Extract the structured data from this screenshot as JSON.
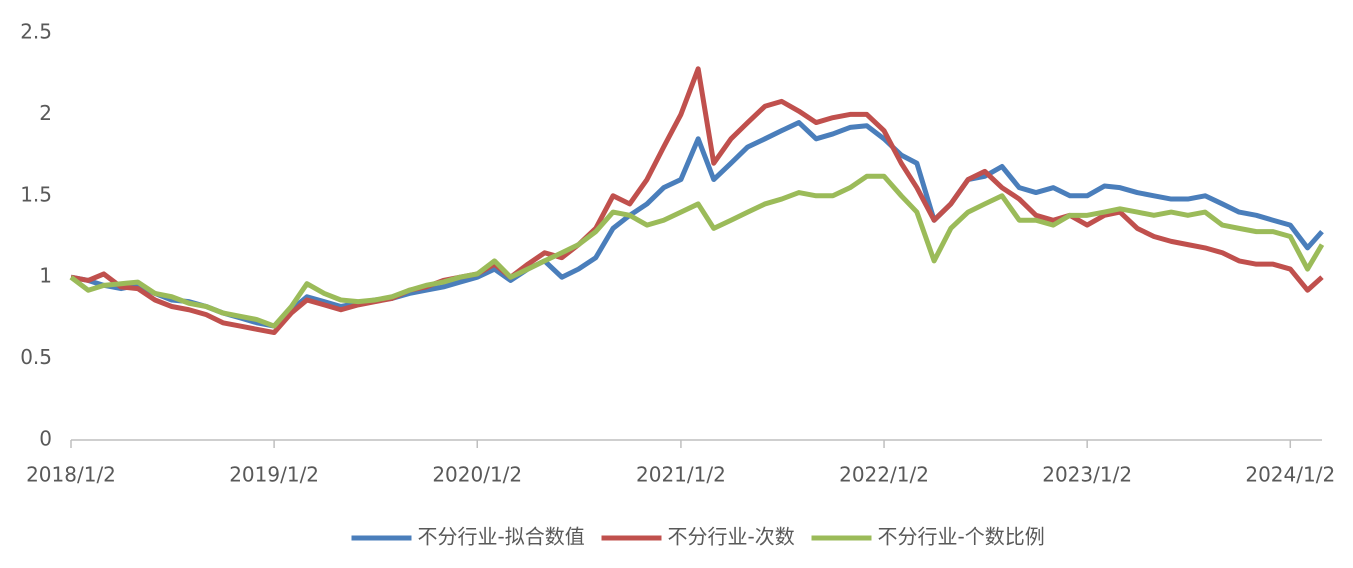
{
  "chart_data": {
    "type": "line",
    "x": [
      "2018/1/2",
      "2018/2/2",
      "2018/3/2",
      "2018/4/2",
      "2018/5/2",
      "2018/6/2",
      "2018/7/2",
      "2018/8/2",
      "2018/9/2",
      "2018/10/2",
      "2018/11/2",
      "2018/12/2",
      "2019/1/2",
      "2019/2/2",
      "2019/3/2",
      "2019/4/2",
      "2019/5/2",
      "2019/6/2",
      "2019/7/2",
      "2019/8/2",
      "2019/9/2",
      "2019/10/2",
      "2019/11/2",
      "2019/12/2",
      "2020/1/2",
      "2020/2/2",
      "2020/3/2",
      "2020/4/2",
      "2020/5/2",
      "2020/6/2",
      "2020/7/2",
      "2020/8/2",
      "2020/9/2",
      "2020/10/2",
      "2020/11/2",
      "2020/12/2",
      "2021/1/2",
      "2021/2/2",
      "2021/3/2",
      "2021/4/2",
      "2021/5/2",
      "2021/6/2",
      "2021/7/2",
      "2021/8/2",
      "2021/9/2",
      "2021/10/2",
      "2021/11/2",
      "2021/12/2",
      "2022/1/2",
      "2022/2/2",
      "2022/3/2",
      "2022/4/2",
      "2022/5/2",
      "2022/6/2",
      "2022/7/2",
      "2022/8/2",
      "2022/9/2",
      "2022/10/2",
      "2022/11/2",
      "2022/12/2",
      "2023/1/2",
      "2023/2/2",
      "2023/3/2",
      "2023/4/2",
      "2023/5/2",
      "2023/6/2",
      "2023/7/2",
      "2023/8/2",
      "2023/9/2",
      "2023/10/2",
      "2023/11/2",
      "2023/12/2",
      "2024/1/2",
      "2024/2/2",
      "2024/2/28"
    ],
    "series": [
      {
        "name": "不分行业-拟合数值",
        "color": "#4a7ebb",
        "values": [
          1.0,
          0.98,
          0.95,
          0.93,
          0.95,
          0.9,
          0.86,
          0.85,
          0.82,
          0.78,
          0.75,
          0.72,
          0.7,
          0.8,
          0.88,
          0.85,
          0.82,
          0.84,
          0.86,
          0.87,
          0.9,
          0.92,
          0.94,
          0.97,
          1.0,
          1.05,
          0.98,
          1.05,
          1.1,
          1.0,
          1.05,
          1.12,
          1.3,
          1.38,
          1.45,
          1.55,
          1.6,
          1.85,
          1.6,
          1.7,
          1.8,
          1.85,
          1.9,
          1.95,
          1.85,
          1.88,
          1.92,
          1.93,
          1.85,
          1.75,
          1.7,
          1.35,
          1.45,
          1.6,
          1.62,
          1.68,
          1.55,
          1.52,
          1.55,
          1.5,
          1.5,
          1.56,
          1.55,
          1.52,
          1.5,
          1.48,
          1.48,
          1.5,
          1.45,
          1.4,
          1.38,
          1.35,
          1.32,
          1.18,
          1.28
        ]
      },
      {
        "name": "不分行业-次数",
        "color": "#c0504d",
        "values": [
          1.0,
          0.98,
          1.02,
          0.94,
          0.93,
          0.86,
          0.82,
          0.8,
          0.77,
          0.72,
          0.7,
          0.68,
          0.66,
          0.78,
          0.86,
          0.83,
          0.8,
          0.83,
          0.85,
          0.87,
          0.92,
          0.94,
          0.98,
          1.0,
          1.02,
          1.08,
          1.0,
          1.08,
          1.15,
          1.12,
          1.2,
          1.3,
          1.5,
          1.45,
          1.6,
          1.8,
          2.0,
          2.28,
          1.7,
          1.85,
          1.95,
          2.05,
          2.08,
          2.02,
          1.95,
          1.98,
          2.0,
          2.0,
          1.9,
          1.7,
          1.55,
          1.35,
          1.45,
          1.6,
          1.65,
          1.55,
          1.48,
          1.38,
          1.35,
          1.38,
          1.32,
          1.38,
          1.4,
          1.3,
          1.25,
          1.22,
          1.2,
          1.18,
          1.15,
          1.1,
          1.08,
          1.08,
          1.05,
          0.92,
          1.0
        ]
      },
      {
        "name": "不分行业-个数比例",
        "color": "#9bbb59",
        "values": [
          1.0,
          0.92,
          0.95,
          0.96,
          0.97,
          0.9,
          0.88,
          0.84,
          0.82,
          0.78,
          0.76,
          0.74,
          0.7,
          0.82,
          0.96,
          0.9,
          0.86,
          0.85,
          0.86,
          0.88,
          0.92,
          0.95,
          0.97,
          1.0,
          1.02,
          1.1,
          1.0,
          1.05,
          1.1,
          1.15,
          1.2,
          1.28,
          1.4,
          1.38,
          1.32,
          1.35,
          1.4,
          1.45,
          1.3,
          1.35,
          1.4,
          1.45,
          1.48,
          1.52,
          1.5,
          1.5,
          1.55,
          1.62,
          1.62,
          1.5,
          1.4,
          1.1,
          1.3,
          1.4,
          1.45,
          1.5,
          1.35,
          1.35,
          1.32,
          1.38,
          1.38,
          1.4,
          1.42,
          1.4,
          1.38,
          1.4,
          1.38,
          1.4,
          1.32,
          1.3,
          1.28,
          1.28,
          1.25,
          1.05,
          1.2
        ]
      }
    ],
    "xlim": [
      "2018/1/2",
      "2024/2/28"
    ],
    "xticks": [
      "2018/1/2",
      "2019/1/2",
      "2020/1/2",
      "2021/1/2",
      "2022/1/2",
      "2023/1/2",
      "2024/1/2"
    ],
    "ylim": [
      0,
      2.5
    ],
    "yticks": [
      0,
      0.5,
      1,
      1.5,
      2,
      2.5
    ],
    "grid": false,
    "legend": "bottom"
  }
}
